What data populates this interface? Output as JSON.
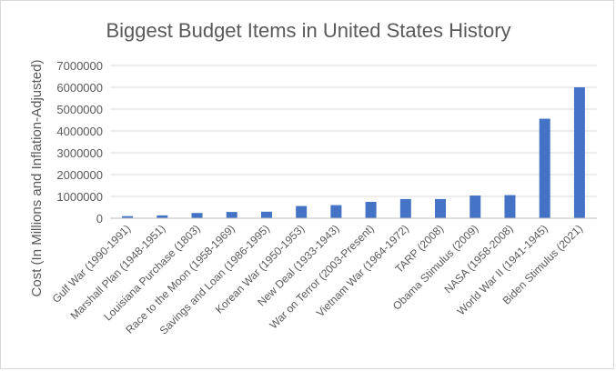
{
  "chart_data": {
    "type": "bar",
    "title": "Biggest Budget Items in United States History",
    "xlabel": "",
    "ylabel": "Cost (In Millions and Inflation-Adjusted)",
    "ylim": [
      0,
      7000000
    ],
    "yticks": [
      0,
      1000000,
      2000000,
      3000000,
      4000000,
      5000000,
      6000000,
      7000000
    ],
    "ytick_labels": [
      "0",
      "1000000",
      "2000000",
      "3000000",
      "4000000",
      "5000000",
      "6000000",
      "7000000"
    ],
    "grid": true,
    "legend": "none",
    "bar_color": "#4472c4",
    "categories": [
      "Gulf War (1990-1991)",
      "Marshall Plan (1948-1951)",
      "Louisiana Purchase (1803)",
      "Race to the Moon (1958-1969)",
      "Savings and Loan (1986-1995)",
      "Korean War (1950-1953)",
      "New Deal (1933-1943)",
      "War on Terror (2003-Present)",
      "Vietnam War (1964-1972)",
      "TARP (2008)",
      "Obama Stimulus (2009)",
      "NASA (1958-2008)",
      "World War II (1941-1945)",
      "Biden Stimulus (2021)"
    ],
    "values": [
      96000,
      130000,
      240000,
      288000,
      300000,
      560000,
      600000,
      750000,
      880000,
      880000,
      1040000,
      1060000,
      4560000,
      6000000
    ]
  }
}
